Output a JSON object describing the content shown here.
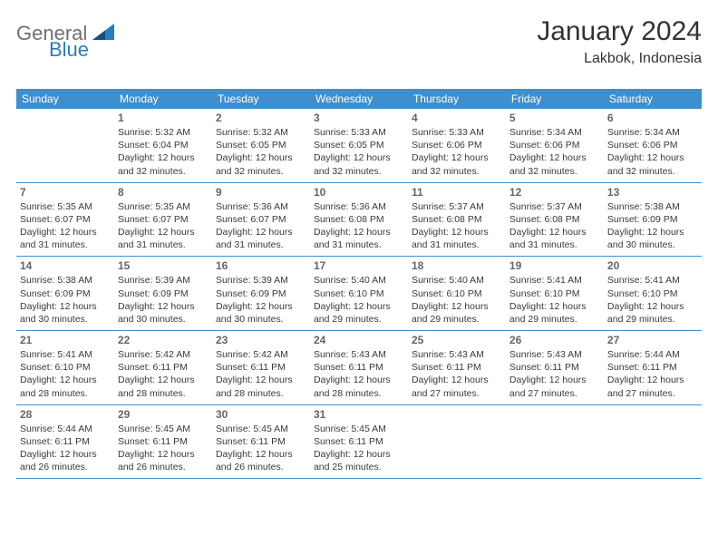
{
  "brand": {
    "part1": "General",
    "part2": "Blue"
  },
  "title": "January 2024",
  "location": "Lakbok, Indonesia",
  "colors": {
    "header_bg": "#3f8fcd",
    "header_text": "#ffffff",
    "rule": "#3f8fcd",
    "daynum": "#666666",
    "body_text": "#3a3a3a",
    "logo_gray": "#6f6f6f",
    "logo_blue": "#2a7dbd",
    "page_bg": "#ffffff"
  },
  "weekdays": [
    "Sunday",
    "Monday",
    "Tuesday",
    "Wednesday",
    "Thursday",
    "Friday",
    "Saturday"
  ],
  "weeks": [
    [
      null,
      {
        "n": "1",
        "sr": "5:32 AM",
        "ss": "6:04 PM",
        "dl": "12 hours and 32 minutes."
      },
      {
        "n": "2",
        "sr": "5:32 AM",
        "ss": "6:05 PM",
        "dl": "12 hours and 32 minutes."
      },
      {
        "n": "3",
        "sr": "5:33 AM",
        "ss": "6:05 PM",
        "dl": "12 hours and 32 minutes."
      },
      {
        "n": "4",
        "sr": "5:33 AM",
        "ss": "6:06 PM",
        "dl": "12 hours and 32 minutes."
      },
      {
        "n": "5",
        "sr": "5:34 AM",
        "ss": "6:06 PM",
        "dl": "12 hours and 32 minutes."
      },
      {
        "n": "6",
        "sr": "5:34 AM",
        "ss": "6:06 PM",
        "dl": "12 hours and 32 minutes."
      }
    ],
    [
      {
        "n": "7",
        "sr": "5:35 AM",
        "ss": "6:07 PM",
        "dl": "12 hours and 31 minutes."
      },
      {
        "n": "8",
        "sr": "5:35 AM",
        "ss": "6:07 PM",
        "dl": "12 hours and 31 minutes."
      },
      {
        "n": "9",
        "sr": "5:36 AM",
        "ss": "6:07 PM",
        "dl": "12 hours and 31 minutes."
      },
      {
        "n": "10",
        "sr": "5:36 AM",
        "ss": "6:08 PM",
        "dl": "12 hours and 31 minutes."
      },
      {
        "n": "11",
        "sr": "5:37 AM",
        "ss": "6:08 PM",
        "dl": "12 hours and 31 minutes."
      },
      {
        "n": "12",
        "sr": "5:37 AM",
        "ss": "6:08 PM",
        "dl": "12 hours and 31 minutes."
      },
      {
        "n": "13",
        "sr": "5:38 AM",
        "ss": "6:09 PM",
        "dl": "12 hours and 30 minutes."
      }
    ],
    [
      {
        "n": "14",
        "sr": "5:38 AM",
        "ss": "6:09 PM",
        "dl": "12 hours and 30 minutes."
      },
      {
        "n": "15",
        "sr": "5:39 AM",
        "ss": "6:09 PM",
        "dl": "12 hours and 30 minutes."
      },
      {
        "n": "16",
        "sr": "5:39 AM",
        "ss": "6:09 PM",
        "dl": "12 hours and 30 minutes."
      },
      {
        "n": "17",
        "sr": "5:40 AM",
        "ss": "6:10 PM",
        "dl": "12 hours and 29 minutes."
      },
      {
        "n": "18",
        "sr": "5:40 AM",
        "ss": "6:10 PM",
        "dl": "12 hours and 29 minutes."
      },
      {
        "n": "19",
        "sr": "5:41 AM",
        "ss": "6:10 PM",
        "dl": "12 hours and 29 minutes."
      },
      {
        "n": "20",
        "sr": "5:41 AM",
        "ss": "6:10 PM",
        "dl": "12 hours and 29 minutes."
      }
    ],
    [
      {
        "n": "21",
        "sr": "5:41 AM",
        "ss": "6:10 PM",
        "dl": "12 hours and 28 minutes."
      },
      {
        "n": "22",
        "sr": "5:42 AM",
        "ss": "6:11 PM",
        "dl": "12 hours and 28 minutes."
      },
      {
        "n": "23",
        "sr": "5:42 AM",
        "ss": "6:11 PM",
        "dl": "12 hours and 28 minutes."
      },
      {
        "n": "24",
        "sr": "5:43 AM",
        "ss": "6:11 PM",
        "dl": "12 hours and 28 minutes."
      },
      {
        "n": "25",
        "sr": "5:43 AM",
        "ss": "6:11 PM",
        "dl": "12 hours and 27 minutes."
      },
      {
        "n": "26",
        "sr": "5:43 AM",
        "ss": "6:11 PM",
        "dl": "12 hours and 27 minutes."
      },
      {
        "n": "27",
        "sr": "5:44 AM",
        "ss": "6:11 PM",
        "dl": "12 hours and 27 minutes."
      }
    ],
    [
      {
        "n": "28",
        "sr": "5:44 AM",
        "ss": "6:11 PM",
        "dl": "12 hours and 26 minutes."
      },
      {
        "n": "29",
        "sr": "5:45 AM",
        "ss": "6:11 PM",
        "dl": "12 hours and 26 minutes."
      },
      {
        "n": "30",
        "sr": "5:45 AM",
        "ss": "6:11 PM",
        "dl": "12 hours and 26 minutes."
      },
      {
        "n": "31",
        "sr": "5:45 AM",
        "ss": "6:11 PM",
        "dl": "12 hours and 25 minutes."
      },
      null,
      null,
      null
    ]
  ],
  "labels": {
    "sunrise": "Sunrise:",
    "sunset": "Sunset:",
    "daylight": "Daylight:"
  }
}
